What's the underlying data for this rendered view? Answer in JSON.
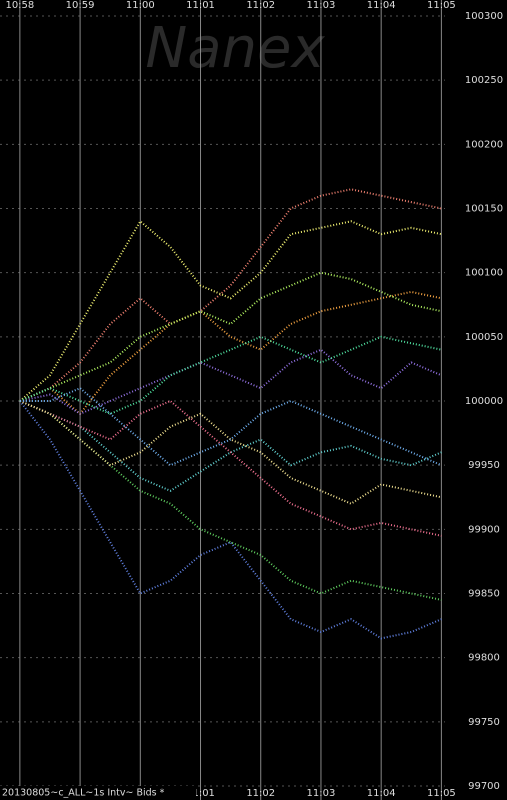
{
  "chart_data": {
    "type": "line",
    "watermark": "Nanex",
    "footer": "20130805~c_ALL~1s Intv~ Bids *",
    "x": [
      0,
      0.5,
      1,
      1.5,
      2,
      2.5,
      3,
      3.5,
      4,
      4.5,
      5,
      5.5,
      6,
      6.5,
      7
    ],
    "xlim": [
      -0.33,
      7.06
    ],
    "xticks": [
      {
        "value": 0,
        "label": "10:58"
      },
      {
        "value": 1,
        "label": "10:59"
      },
      {
        "value": 2,
        "label": "11:00"
      },
      {
        "value": 3,
        "label": "11:01"
      },
      {
        "value": 4,
        "label": "11:02"
      },
      {
        "value": 5,
        "label": "11:03"
      },
      {
        "value": 6,
        "label": "11:04"
      },
      {
        "value": 7,
        "label": "11:05"
      }
    ],
    "ylim": [
      99700,
      100300
    ],
    "yticks": [
      99700,
      99750,
      99800,
      99850,
      99900,
      99950,
      100000,
      100050,
      100100,
      100150,
      100200,
      100250,
      100300
    ],
    "grid": true,
    "series": [
      {
        "color": "#f08070",
        "values": [
          100000,
          100010,
          100030,
          100060,
          100080,
          100060,
          100070,
          100090,
          100120,
          100150,
          100160,
          100165,
          100160,
          100155,
          100150
        ]
      },
      {
        "color": "#f0f070",
        "values": [
          100000,
          100020,
          100060,
          100100,
          100140,
          100120,
          100090,
          100080,
          100100,
          100130,
          100135,
          100140,
          100130,
          100135,
          100130
        ]
      },
      {
        "color": "#6080e0",
        "values": [
          100000,
          99970,
          99930,
          99890,
          99850,
          99860,
          99880,
          99890,
          99860,
          99830,
          99820,
          99830,
          99815,
          99820,
          99830
        ]
      },
      {
        "color": "#60d060",
        "values": [
          100000,
          99990,
          99970,
          99950,
          99930,
          99920,
          99900,
          99890,
          99880,
          99860,
          99850,
          99860,
          99855,
          99850,
          99845
        ]
      },
      {
        "color": "#f0a040",
        "values": [
          100000,
          100010,
          99990,
          100020,
          100040,
          100060,
          100070,
          100050,
          100040,
          100060,
          100070,
          100075,
          100080,
          100085,
          100080
        ]
      },
      {
        "color": "#60d0d0",
        "values": [
          100000,
          99990,
          99980,
          99960,
          99940,
          99930,
          99945,
          99960,
          99970,
          99950,
          99960,
          99965,
          99955,
          99950,
          99960
        ]
      },
      {
        "color": "#9070e0",
        "values": [
          100000,
          100005,
          99990,
          100000,
          100010,
          100020,
          100030,
          100020,
          100010,
          100030,
          100040,
          100020,
          100010,
          100030,
          100020
        ]
      },
      {
        "color": "#b0f060",
        "values": [
          100000,
          100010,
          100020,
          100030,
          100050,
          100060,
          100070,
          100060,
          100080,
          100090,
          100100,
          100095,
          100085,
          100075,
          100070
        ]
      },
      {
        "color": "#f07090",
        "values": [
          100000,
          99990,
          99980,
          99970,
          99990,
          100000,
          99980,
          99960,
          99940,
          99920,
          99910,
          99900,
          99905,
          99900,
          99895
        ]
      },
      {
        "color": "#50e0a0",
        "values": [
          100000,
          100010,
          100000,
          99990,
          100000,
          100020,
          100030,
          100040,
          100050,
          100040,
          100030,
          100040,
          100050,
          100045,
          100040
        ]
      },
      {
        "color": "#f0e090",
        "values": [
          100000,
          99990,
          99970,
          99950,
          99960,
          99980,
          99990,
          99970,
          99960,
          99940,
          99930,
          99920,
          99935,
          99930,
          99925
        ]
      },
      {
        "color": "#70b0f0",
        "values": [
          100000,
          100000,
          100010,
          99990,
          99970,
          99950,
          99960,
          99970,
          99990,
          100000,
          99990,
          99980,
          99970,
          99960,
          99950
        ]
      }
    ]
  }
}
